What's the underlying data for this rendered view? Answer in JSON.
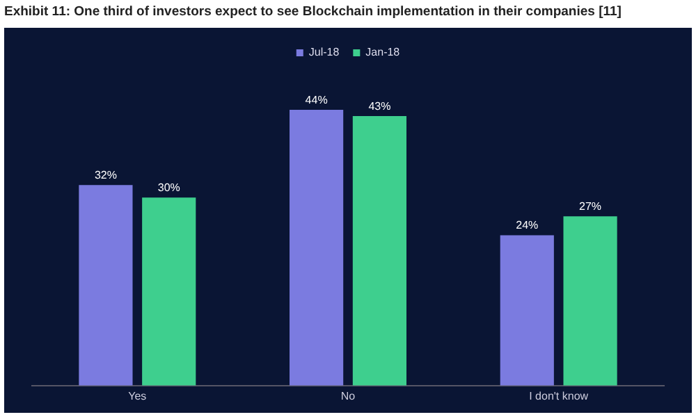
{
  "chart_data": {
    "type": "bar",
    "title": "Exhibit 11: One third of investors expect to see Blockchain implementation in their companies [11]",
    "categories": [
      "Yes",
      "No",
      "I don't know"
    ],
    "series": [
      {
        "name": "Jul-18",
        "color": "#7b7be0",
        "values": [
          32,
          44,
          24
        ],
        "value_labels": [
          "32%",
          "44%",
          "24%"
        ]
      },
      {
        "name": "Jan-18",
        "color": "#3ecf8e",
        "values": [
          30,
          43,
          27
        ],
        "value_labels": [
          "30%",
          "43%",
          "27%"
        ]
      }
    ],
    "legend": "top",
    "grid": false
  }
}
